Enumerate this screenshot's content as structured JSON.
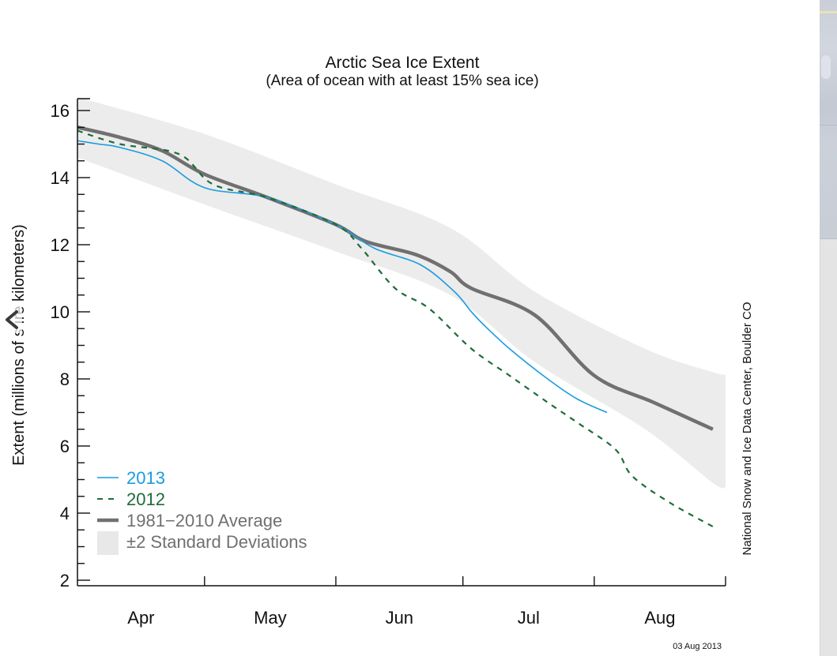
{
  "chart_data": {
    "type": "line",
    "title": "Arctic Sea Ice Extent",
    "subtitle": "(Area of ocean with at least 15% sea ice)",
    "xlabel": "",
    "ylabel": "Extent (millions of square kilometers)",
    "ylabel_visible": "Extent (millions of s   ıre kilometers)",
    "ylim": [
      2,
      16.4
    ],
    "yticks": [
      2,
      4,
      6,
      8,
      10,
      12,
      14,
      16
    ],
    "ytick_labels": [
      "2",
      "4",
      "6",
      "8",
      "10",
      "12",
      "14",
      "16"
    ],
    "x_unit": "day offset from Apr 1",
    "xlim": [
      0,
      153
    ],
    "month_boundaries": [
      30,
      61,
      91,
      122,
      153
    ],
    "xtick_labels": [
      {
        "label": "Apr",
        "center": 15
      },
      {
        "label": "May",
        "center": 45.5
      },
      {
        "label": "Jun",
        "center": 76
      },
      {
        "label": "Jul",
        "center": 106.5
      },
      {
        "label": "Aug",
        "center": 137.5
      }
    ],
    "grid": false,
    "legend_position": "bottom-left",
    "series": [
      {
        "name": "±2 Standard Deviations",
        "kind": "band",
        "color": "#ececec",
        "x": [
          0,
          30,
          61,
          88,
          108,
          134,
          150
        ],
        "upper": [
          16.4,
          15.3,
          13.8,
          12.5,
          10.6,
          8.9,
          8.2
        ],
        "lower": [
          14.6,
          13.2,
          11.8,
          10.5,
          8.5,
          6.5,
          4.9
        ]
      },
      {
        "name": "1981−2010 Average",
        "kind": "line",
        "color": "#707070",
        "dash": "solid",
        "x": [
          0,
          10,
          20,
          30,
          45,
          61,
          68,
          80,
          88,
          93,
          108,
          122,
          136,
          150
        ],
        "y": [
          15.5,
          15.2,
          14.8,
          14.1,
          13.4,
          12.6,
          12.1,
          11.7,
          11.2,
          10.7,
          9.9,
          8.1,
          7.3,
          6.5
        ]
      },
      {
        "name": "2013",
        "kind": "line",
        "color": "#1a9be0",
        "dash": "solid",
        "x": [
          0,
          5,
          10,
          20,
          30,
          45,
          61,
          70,
          81,
          89,
          93,
          96,
          102,
          111,
          118,
          125
        ],
        "y": [
          15.1,
          15.0,
          14.9,
          14.5,
          13.7,
          13.4,
          12.6,
          11.9,
          11.4,
          10.6,
          10.0,
          9.6,
          8.9,
          8.0,
          7.4,
          7.0
        ]
      },
      {
        "name": "2012",
        "kind": "line",
        "color": "#1f6b3a",
        "dash": "dashed",
        "x": [
          0,
          10,
          24,
          32,
          45,
          61,
          67,
          75,
          83,
          93,
          102,
          111,
          118,
          127,
          131,
          140,
          150
        ],
        "y": [
          15.4,
          15.0,
          14.7,
          13.8,
          13.4,
          12.6,
          11.9,
          10.7,
          10.1,
          8.9,
          8.1,
          7.3,
          6.7,
          5.9,
          5.1,
          4.3,
          3.6
        ]
      }
    ],
    "legend": [
      {
        "label": "2013",
        "color": "#1a9be0",
        "symbol": "line"
      },
      {
        "label": "2012",
        "color": "#1f6b3a",
        "symbol": "dashed"
      },
      {
        "label": "1981−2010 Average",
        "color": "#707070",
        "symbol": "thick-line"
      },
      {
        "label": "±2 Standard Deviations",
        "color": "#707070",
        "symbol": "box"
      }
    ],
    "annotations": {
      "credit": "National Snow and Ice Data Center, Boulder CO",
      "date": "03 Aug 2013"
    }
  },
  "ui": {
    "prev_arrow_icon": "chevron-left"
  }
}
